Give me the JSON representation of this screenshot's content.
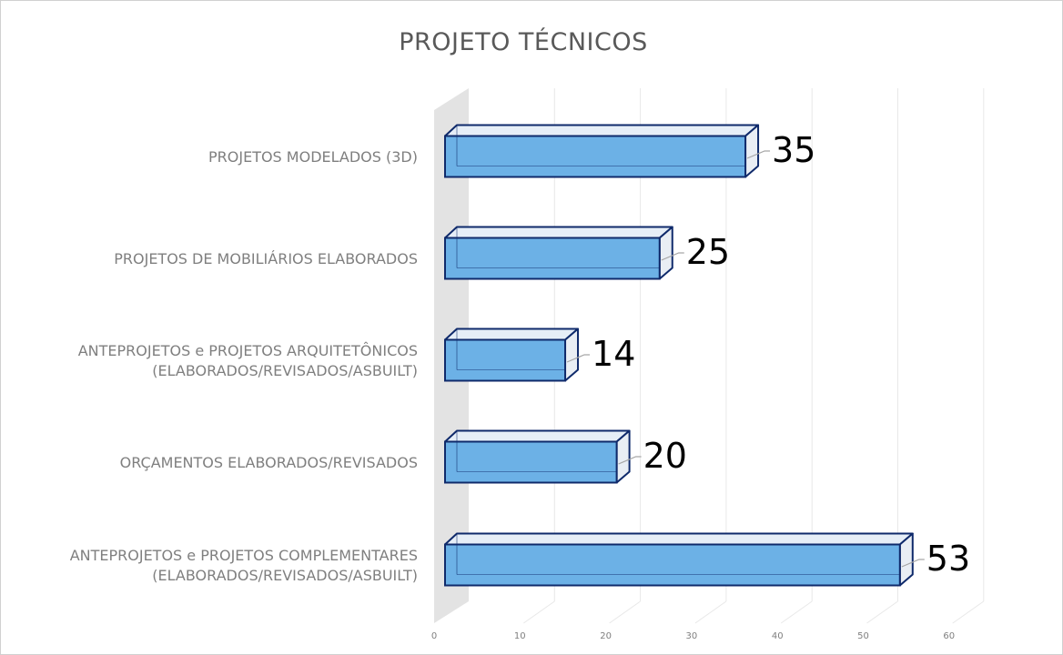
{
  "chart_data": {
    "type": "bar",
    "orientation": "horizontal",
    "style": "3d",
    "title": "PROJETO TÉCNICOS",
    "categories": [
      [
        "PROJETOS MODELADOS (3D)"
      ],
      [
        "PROJETOS DE MOBILIÁRIOS ELABORADOS"
      ],
      [
        "ANTEPROJETOS e PROJETOS ARQUITETÔNICOS",
        "(ELABORADOS/REVISADOS/ASBUILT)"
      ],
      [
        "ORÇAMENTOS ELABORADOS/REVISADOS"
      ],
      [
        "ANTEPROJETOS e PROJETOS COMPLEMENTARES",
        "(ELABORADOS/REVISADOS/ASBUILT)"
      ]
    ],
    "values": [
      35,
      25,
      14,
      20,
      53
    ],
    "xlim": [
      0,
      60
    ],
    "xticks": [
      0,
      10,
      20,
      30,
      40,
      50,
      60
    ],
    "grid": true,
    "legend": "none",
    "colors": {
      "bar_front": "#6cb1e6",
      "bar_top": "#e6eef7",
      "bar_side": "#e9eef4",
      "bar_outline": "#0f2a6b",
      "floor": "#e3e3e3",
      "grid": "#e8e8e8"
    }
  }
}
